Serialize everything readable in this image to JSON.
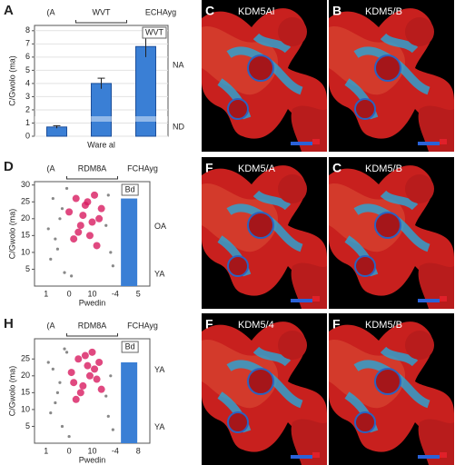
{
  "chart_data": [
    {
      "type": "bar",
      "panel_letter": "A",
      "headers": [
        "(A",
        "WVT",
        "ECHAyg"
      ],
      "ylabel": "C/Gwolo (ma)",
      "xlabel": "Ware al",
      "legend": "WVT",
      "right_labels": [
        "NA",
        "ND"
      ],
      "values": [
        0.7,
        4.0,
        6.8
      ],
      "errors": [
        0.1,
        0.4,
        0.8
      ],
      "color": "#3a7fd5",
      "ylim": [
        0,
        8.4
      ],
      "yticks": [
        0,
        1,
        2,
        3,
        4,
        5,
        6,
        7,
        8
      ],
      "grid": true
    },
    {
      "type": "scatter-bar",
      "panel_letter": "D",
      "headers": [
        "(A",
        "RDM8A",
        "FCHAyg"
      ],
      "ylabel": "C/Gwolo (ma)",
      "xlabel": "Pwedin",
      "right_labels": [
        "OA",
        "YA"
      ],
      "bar_label": "Bd",
      "points": [
        {
          "color": "#d81b60",
          "x": [
            1.0,
            1.3,
            1.5,
            1.7,
            1.9,
            2.1,
            2.3,
            1.2,
            1.6,
            2.0,
            2.4,
            1.4,
            1.8,
            2.2
          ],
          "y": [
            22,
            26,
            18,
            24,
            15,
            27,
            20,
            14,
            21,
            19,
            23,
            16,
            25,
            12
          ]
        },
        {
          "color": "#888888",
          "x": [
            0.2,
            0.4,
            0.6,
            0.3,
            0.8,
            0.5,
            2.8,
            2.6,
            0.7,
            0.1,
            2.9,
            1.1,
            0.9,
            2.7
          ],
          "y": [
            8,
            14,
            20,
            26,
            4,
            11,
            10,
            18,
            23,
            17,
            6,
            3,
            29,
            27
          ]
        }
      ],
      "bar_x": 3.6,
      "bar_value": 26,
      "color": "#3a7fd5",
      "xlim": [
        -0.5,
        4.5
      ],
      "xticks": [
        {
          "value": 0,
          "label": "1"
        },
        {
          "value": 1,
          "label": "0"
        },
        {
          "value": 2,
          "label": "10"
        },
        {
          "value": 3,
          "label": "-4"
        },
        {
          "value": 4,
          "label": "5"
        }
      ],
      "ylim": [
        0,
        31
      ],
      "yticks": [
        5,
        10,
        15,
        20,
        25,
        30
      ]
    },
    {
      "type": "scatter-bar",
      "panel_letter": "H",
      "headers": [
        "(A",
        "RDM8A",
        "FCHAyg"
      ],
      "ylabel": "C/Gwolo (ma)",
      "xlabel": "Pwedin",
      "right_labels": [
        "YA",
        "YA"
      ],
      "bar_label": "Bd",
      "points": [
        {
          "color": "#d81b60",
          "x": [
            1.1,
            1.4,
            1.6,
            1.8,
            2.0,
            2.2,
            1.3,
            1.7,
            2.1,
            1.5,
            1.9,
            2.3,
            1.2,
            2.4
          ],
          "y": [
            21,
            25,
            17,
            23,
            27,
            19,
            13,
            26,
            22,
            15,
            20,
            24,
            18,
            16
          ]
        },
        {
          "color": "#888888",
          "x": [
            0.2,
            0.5,
            0.3,
            0.7,
            0.4,
            0.9,
            2.7,
            2.8,
            0.6,
            0.1,
            2.9,
            1.0,
            0.8,
            2.6
          ],
          "y": [
            9,
            15,
            22,
            5,
            12,
            27,
            8,
            20,
            18,
            24,
            4,
            2,
            28,
            14
          ]
        }
      ],
      "bar_x": 3.6,
      "bar_value": 24,
      "color": "#3a7fd5",
      "xlim": [
        -0.5,
        4.5
      ],
      "xticks": [
        {
          "value": 0,
          "label": "1"
        },
        {
          "value": 1,
          "label": "0"
        },
        {
          "value": 2,
          "label": "10"
        },
        {
          "value": 3,
          "label": "-4"
        },
        {
          "value": 4,
          "label": "8"
        }
      ],
      "ylim": [
        0,
        31
      ],
      "yticks": [
        5,
        10,
        15,
        20,
        25
      ]
    }
  ],
  "images": [
    {
      "letter": "C",
      "label": "KDM5Al"
    },
    {
      "letter": "B",
      "label": "KDM5/B"
    },
    {
      "letter": "F",
      "label": "KDM5/A"
    },
    {
      "letter": "C",
      "label": "KDM5/B"
    },
    {
      "letter": "F",
      "label": "KDM5/4"
    },
    {
      "letter": "F",
      "label": "KDM5/B"
    }
  ]
}
